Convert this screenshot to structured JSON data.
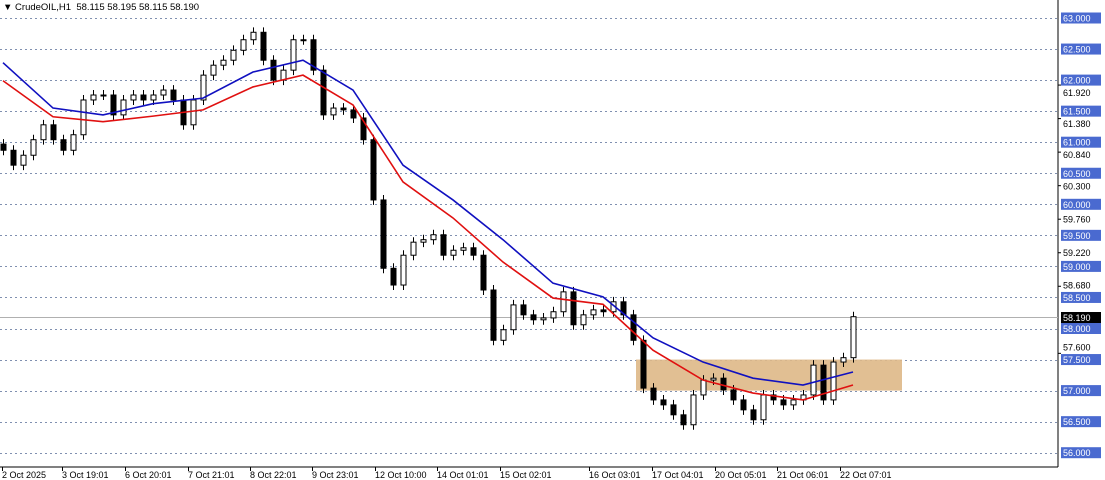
{
  "header": {
    "symbol": "CrudeOIL,H1",
    "ohlc": "58.115 58.195 58.115 58.190"
  },
  "colors": {
    "bull_candle": "#ffffff",
    "bear_candle": "#000000",
    "ma_fast": "#e01010",
    "ma_slow": "#1010c0",
    "zone": "#deb887",
    "axis_highlight": "#4a6ad0",
    "grid": "#8090b0"
  },
  "chart_data": {
    "type": "candlestick",
    "timeframe": "H1",
    "ylim": [
      56.0,
      63.0
    ],
    "grid": true,
    "price_levels": [
      "63.000",
      "62.500",
      "62.000",
      "61.500",
      "61.000",
      "60.500",
      "60.000",
      "59.500",
      "59.000",
      "58.500",
      "58.000",
      "57.500",
      "57.000",
      "56.500",
      "56.000"
    ],
    "axis_prices": [
      "61.920",
      "61.380",
      "60.840",
      "60.300",
      "59.760",
      "59.220",
      "58.680",
      "57.600"
    ],
    "current_price": "58.190",
    "x_tick_labels": [
      "2 Oct 2025",
      "3 Oct 19:01",
      "6 Oct 20:01",
      "7 Oct 21:01",
      "8 Oct 22:01",
      "9 Oct 23:01",
      "12 Oct 10:00",
      "14 Oct 01:01",
      "15 Oct 02:01",
      "16 Oct 03:01",
      "17 Oct 04:01",
      "20 Oct 05:01",
      "21 Oct 06:01",
      "22 Oct 07:01"
    ],
    "closes": [
      60.87,
      60.63,
      60.79,
      61.04,
      61.28,
      61.04,
      60.87,
      61.12,
      61.68,
      61.76,
      61.76,
      61.44,
      61.68,
      61.76,
      61.68,
      61.76,
      61.84,
      61.68,
      61.28,
      61.68,
      62.08,
      62.24,
      62.32,
      62.48,
      62.65,
      62.77,
      62.32,
      62.0,
      62.16,
      62.65,
      62.65,
      62.16,
      61.44,
      61.55,
      61.52,
      61.39,
      61.04,
      60.07,
      58.97,
      58.7,
      59.18,
      59.39,
      59.43,
      59.51,
      59.18,
      59.26,
      59.3,
      59.18,
      58.62,
      57.81,
      57.98,
      58.38,
      58.22,
      58.14,
      58.17,
      58.27,
      58.59,
      58.06,
      58.22,
      58.3,
      58.27,
      58.43,
      58.22,
      57.81,
      57.04,
      56.85,
      56.77,
      56.61,
      56.45,
      56.93,
      57.17,
      57.2,
      57.01,
      56.85,
      56.69,
      56.53,
      56.93,
      56.85,
      56.77,
      56.85,
      56.93,
      57.41,
      56.85,
      57.46,
      57.53,
      58.19
    ],
    "ma_slow_every5": [
      62.28,
      61.55,
      61.44,
      61.62,
      61.71,
      62.13,
      62.32,
      61.84,
      60.63,
      60.07,
      59.43,
      58.73,
      58.51,
      57.85,
      57.46,
      57.2,
      57.09,
      57.3
    ],
    "ma_fast_every5": [
      61.99,
      61.41,
      61.33,
      61.42,
      61.52,
      61.89,
      62.08,
      61.6,
      60.36,
      59.78,
      59.07,
      58.49,
      58.39,
      57.65,
      57.17,
      56.96,
      56.85,
      57.09
    ],
    "zone": {
      "from": 57.0,
      "to": 57.5
    }
  }
}
